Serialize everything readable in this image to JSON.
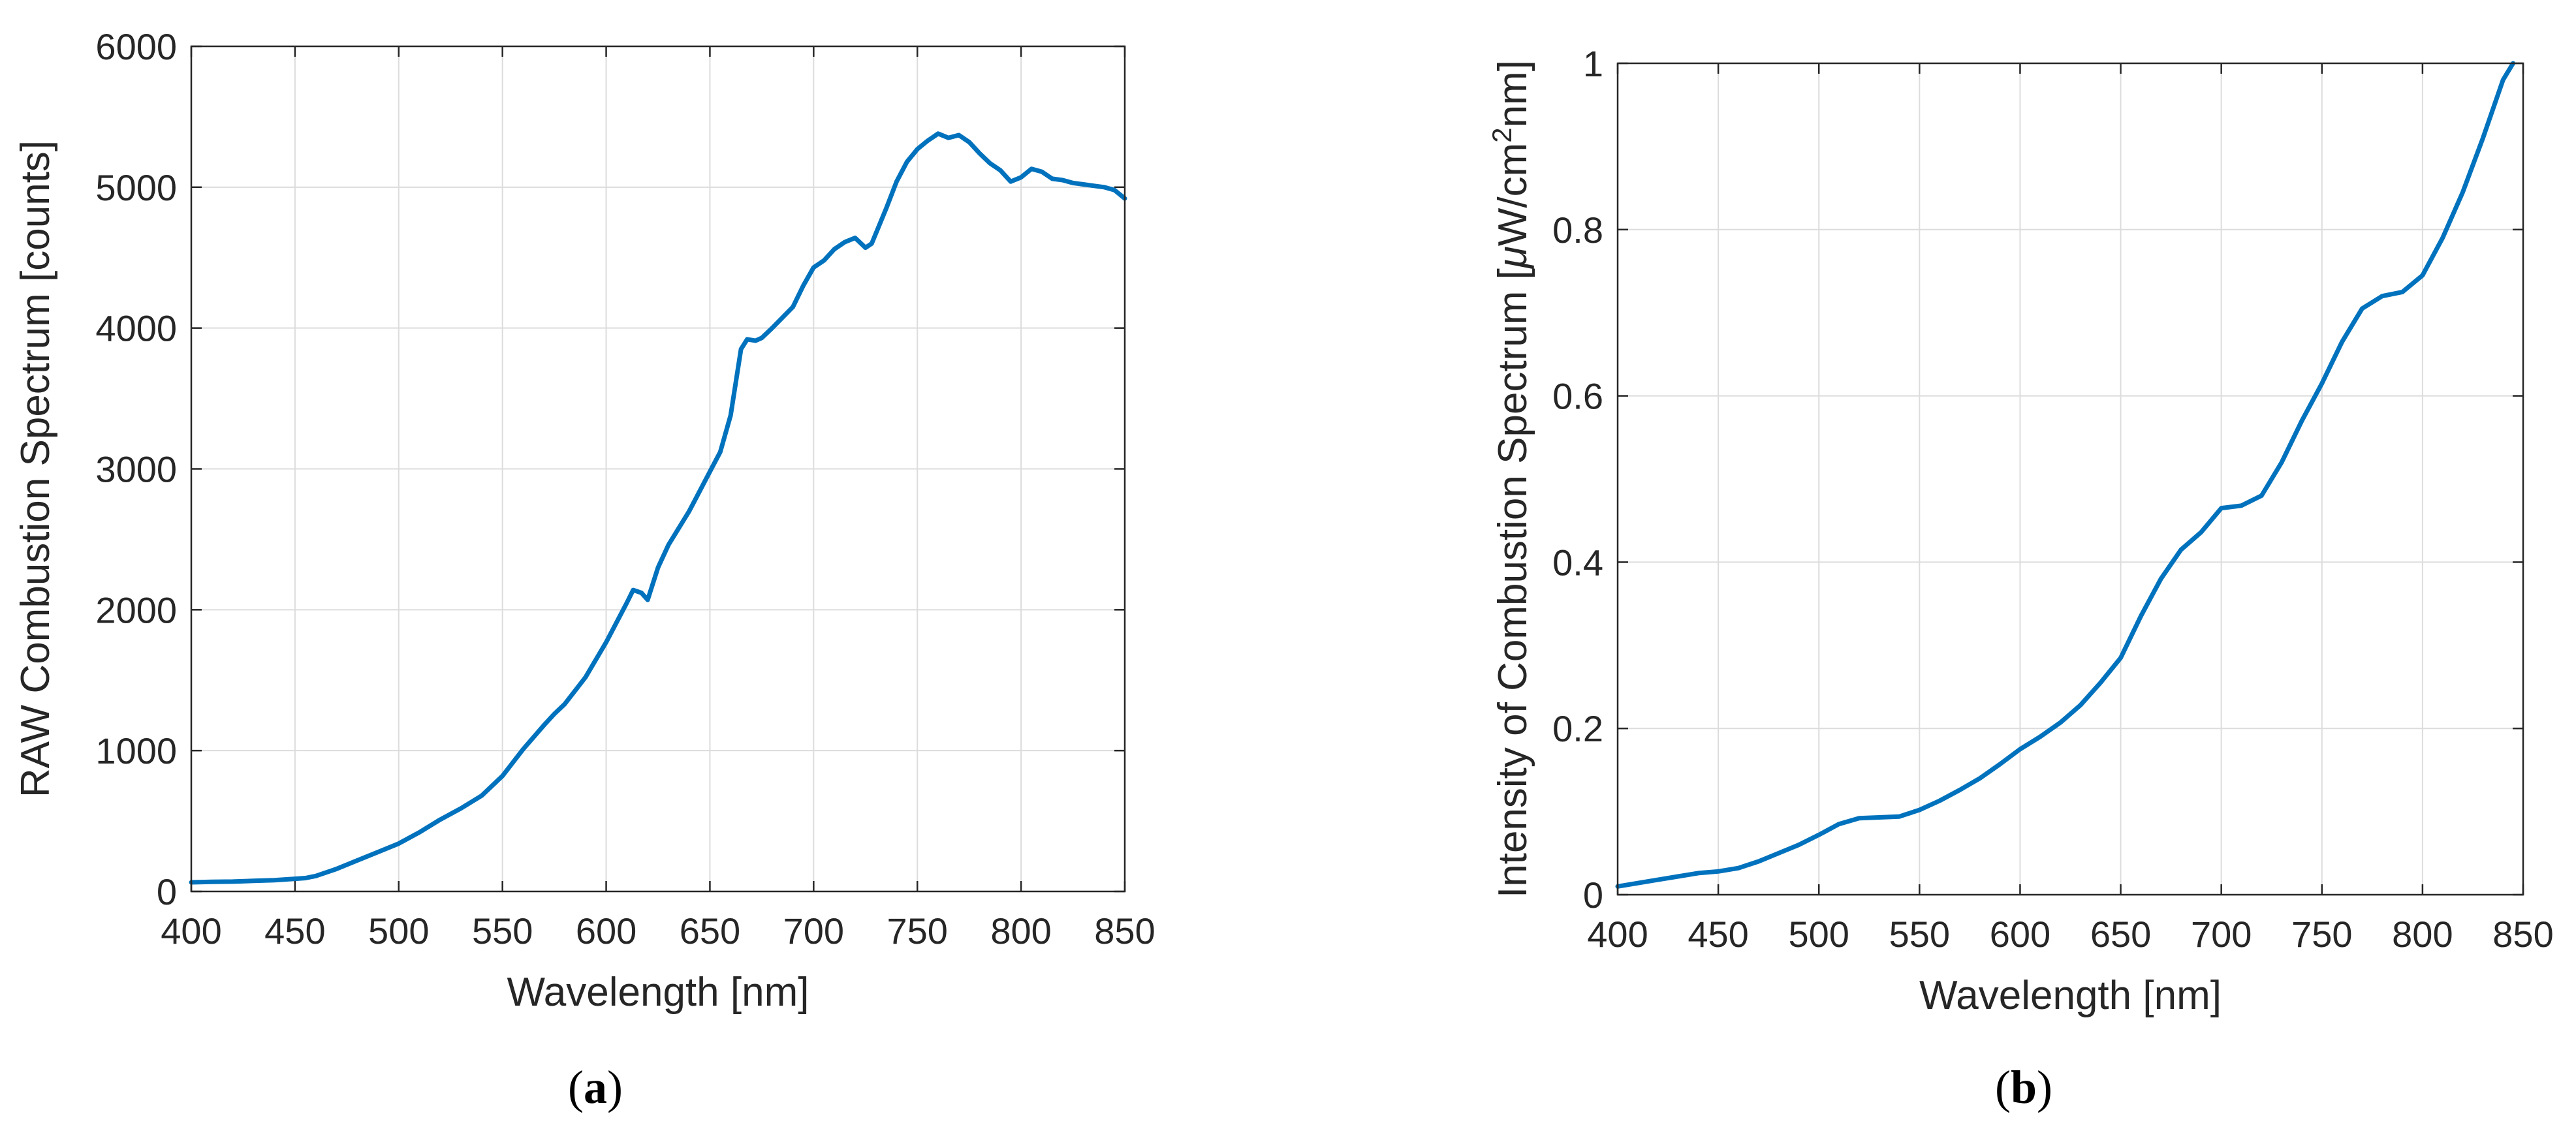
{
  "colors": {
    "series": "#0072BD",
    "axis": "#262626",
    "grid": "#dcdcdc"
  },
  "chart_data": [
    {
      "type": "line",
      "panel_label": "a",
      "xlabel": "Wavelength [nm]",
      "ylabel": "RAW Combustion Spectrum [counts]",
      "xlim": [
        400,
        850
      ],
      "ylim": [
        0,
        6000
      ],
      "xticks": [
        400,
        450,
        500,
        550,
        600,
        650,
        700,
        750,
        800,
        850
      ],
      "yticks": [
        0,
        1000,
        2000,
        3000,
        4000,
        5000,
        6000
      ],
      "grid": true,
      "series": [
        {
          "x": [
            400,
            410,
            420,
            430,
            440,
            450,
            455,
            460,
            470,
            480,
            490,
            500,
            510,
            520,
            530,
            540,
            550,
            560,
            570,
            575,
            580,
            590,
            600,
            610,
            613,
            617,
            620,
            625,
            630,
            640,
            650,
            655,
            660,
            665,
            668,
            672,
            675,
            680,
            690,
            695,
            700,
            705,
            710,
            715,
            720,
            725,
            728,
            735,
            740,
            745,
            750,
            755,
            760,
            765,
            770,
            775,
            780,
            785,
            790,
            795,
            800,
            805,
            810,
            815,
            820,
            825,
            830,
            835,
            840,
            845,
            850
          ],
          "y": [
            65,
            68,
            70,
            75,
            80,
            90,
            95,
            110,
            160,
            220,
            280,
            340,
            420,
            510,
            590,
            680,
            820,
            1010,
            1180,
            1260,
            1330,
            1520,
            1770,
            2050,
            2140,
            2120,
            2070,
            2300,
            2460,
            2700,
            2980,
            3120,
            3380,
            3850,
            3920,
            3910,
            3930,
            4000,
            4150,
            4300,
            4430,
            4480,
            4560,
            4610,
            4640,
            4570,
            4600,
            4850,
            5040,
            5180,
            5270,
            5330,
            5380,
            5350,
            5370,
            5320,
            5240,
            5170,
            5120,
            5040,
            5070,
            5130,
            5110,
            5060,
            5050,
            5030,
            5020,
            5010,
            5000,
            4980,
            4920
          ]
        }
      ]
    },
    {
      "type": "line",
      "panel_label": "b",
      "xlabel": "Wavelength [nm]",
      "ylabel": "Intensity of Combustion Spectrum [μW/cm²nm]",
      "ylabel_parts": {
        "prefix": "Intensity of Combustion Spectrum [",
        "mu": "μ",
        "mid": "W/cm",
        "sup": "2",
        "suffix": "nm]"
      },
      "xlim": [
        400,
        850
      ],
      "ylim": [
        0,
        1
      ],
      "xticks": [
        400,
        450,
        500,
        550,
        600,
        650,
        700,
        750,
        800,
        850
      ],
      "yticks": [
        0,
        0.2,
        0.4,
        0.6,
        0.8,
        1
      ],
      "grid": true,
      "series": [
        {
          "x": [
            400,
            410,
            420,
            430,
            440,
            450,
            460,
            470,
            480,
            490,
            500,
            510,
            520,
            530,
            540,
            550,
            560,
            570,
            580,
            590,
            600,
            610,
            620,
            630,
            640,
            650,
            660,
            670,
            680,
            690,
            700,
            710,
            720,
            730,
            740,
            750,
            760,
            770,
            780,
            790,
            800,
            810,
            820,
            830,
            840,
            845
          ],
          "y": [
            0.01,
            0.014,
            0.018,
            0.022,
            0.026,
            0.028,
            0.032,
            0.04,
            0.05,
            0.06,
            0.072,
            0.085,
            0.092,
            0.093,
            0.094,
            0.102,
            0.113,
            0.126,
            0.14,
            0.157,
            0.175,
            0.19,
            0.207,
            0.228,
            0.255,
            0.285,
            0.335,
            0.38,
            0.415,
            0.436,
            0.465,
            0.468,
            0.48,
            0.52,
            0.57,
            0.615,
            0.665,
            0.705,
            0.72,
            0.725,
            0.745,
            0.79,
            0.845,
            0.91,
            0.98,
            1.0
          ]
        }
      ]
    }
  ]
}
